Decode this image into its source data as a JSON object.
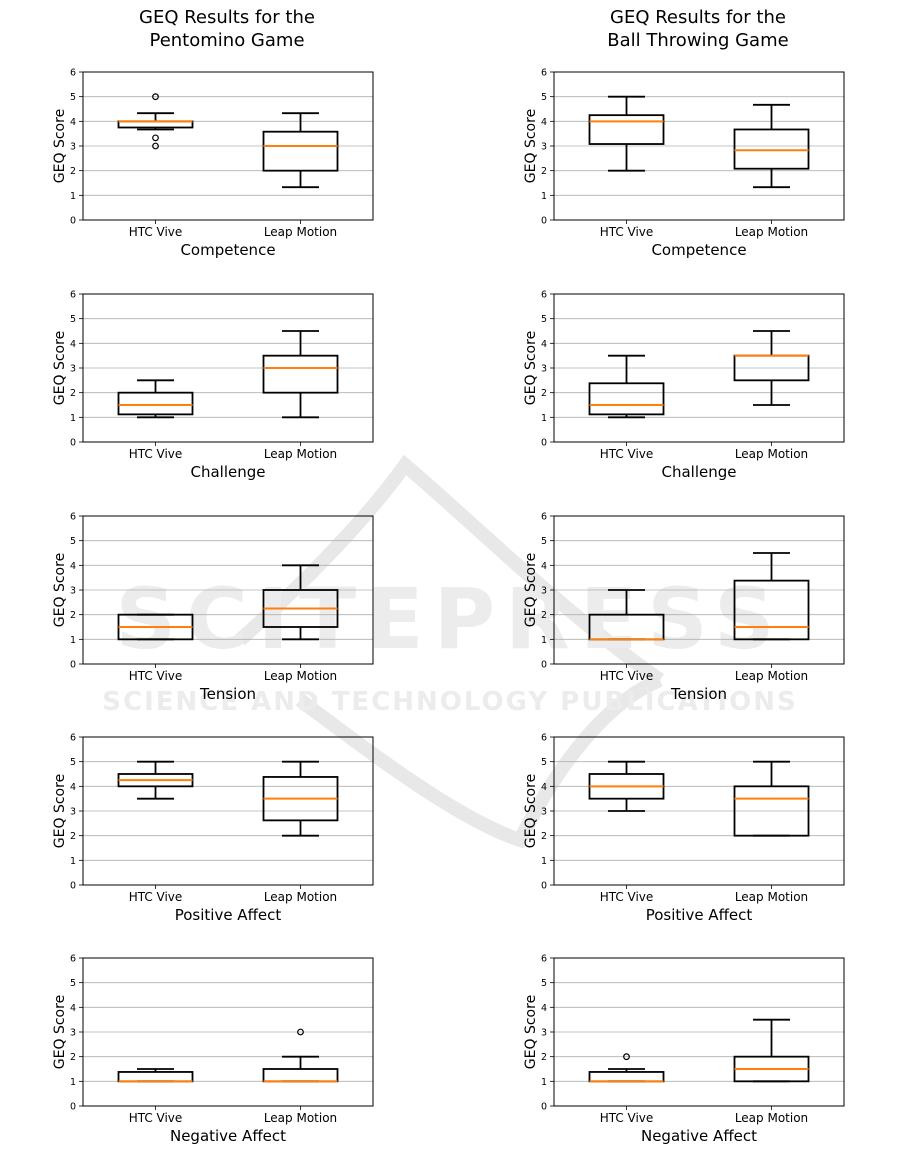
{
  "columns": [
    {
      "title": "GEQ Results for the\nPentomino Game"
    },
    {
      "title": "GEQ Results for the\nBall Throwing Game"
    }
  ],
  "watermark": {
    "line1": "SCITEPRESS",
    "line2": "SCIENCE AND TECHNOLOGY PUBLICATIONS"
  },
  "colors": {
    "median": "#ff7f0e",
    "box": "#000000",
    "grid": "#b0b0b0"
  },
  "chart_data": [
    {
      "type": "boxplot",
      "column": 0,
      "xlabel": "Competence",
      "ylabel": "GEQ Score",
      "ylim": [
        0,
        6
      ],
      "yticks": [
        0,
        1,
        2,
        3,
        4,
        5,
        6
      ],
      "grid": "y",
      "categories": [
        "HTC Vive",
        "Leap Motion"
      ],
      "boxes": [
        {
          "whislo": 3.67,
          "q1": 3.75,
          "med": 4.0,
          "q3": 4.0,
          "whishi": 4.33,
          "fliers": [
            5.0,
            3.33,
            3.0
          ]
        },
        {
          "whislo": 1.33,
          "q1": 2.0,
          "med": 3.0,
          "q3": 3.58,
          "whishi": 4.33,
          "fliers": []
        }
      ]
    },
    {
      "type": "boxplot",
      "column": 1,
      "xlabel": "Competence",
      "ylabel": "GEQ Score",
      "ylim": [
        0,
        6
      ],
      "yticks": [
        0,
        1,
        2,
        3,
        4,
        5,
        6
      ],
      "grid": "y",
      "categories": [
        "HTC Vive",
        "Leap Motion"
      ],
      "boxes": [
        {
          "whislo": 2.0,
          "q1": 3.08,
          "med": 4.0,
          "q3": 4.25,
          "whishi": 5.0,
          "fliers": []
        },
        {
          "whislo": 1.33,
          "q1": 2.08,
          "med": 2.83,
          "q3": 3.67,
          "whishi": 4.67,
          "fliers": []
        }
      ]
    },
    {
      "type": "boxplot",
      "column": 0,
      "xlabel": "Challenge",
      "ylabel": "GEQ Score",
      "ylim": [
        0,
        6
      ],
      "yticks": [
        0,
        1,
        2,
        3,
        4,
        5,
        6
      ],
      "grid": "y",
      "categories": [
        "HTC Vive",
        "Leap Motion"
      ],
      "boxes": [
        {
          "whislo": 1.0,
          "q1": 1.12,
          "med": 1.5,
          "q3": 2.0,
          "whishi": 2.5,
          "fliers": []
        },
        {
          "whislo": 1.0,
          "q1": 2.0,
          "med": 3.0,
          "q3": 3.5,
          "whishi": 4.5,
          "fliers": []
        }
      ]
    },
    {
      "type": "boxplot",
      "column": 1,
      "xlabel": "Challenge",
      "ylabel": "GEQ Score",
      "ylim": [
        0,
        6
      ],
      "yticks": [
        0,
        1,
        2,
        3,
        4,
        5,
        6
      ],
      "grid": "y",
      "categories": [
        "HTC Vive",
        "Leap Motion"
      ],
      "boxes": [
        {
          "whislo": 1.0,
          "q1": 1.12,
          "med": 1.5,
          "q3": 2.38,
          "whishi": 3.5,
          "fliers": []
        },
        {
          "whislo": 1.5,
          "q1": 2.5,
          "med": 3.5,
          "q3": 3.5,
          "whishi": 4.5,
          "fliers": []
        }
      ]
    },
    {
      "type": "boxplot",
      "column": 0,
      "xlabel": "Tension",
      "ylabel": "GEQ Score",
      "ylim": [
        0,
        6
      ],
      "yticks": [
        0,
        1,
        2,
        3,
        4,
        5,
        6
      ],
      "grid": "y",
      "categories": [
        "HTC Vive",
        "Leap Motion"
      ],
      "boxes": [
        {
          "whislo": 1.0,
          "q1": 1.0,
          "med": 1.5,
          "q3": 2.0,
          "whishi": 2.0,
          "fliers": []
        },
        {
          "whislo": 1.0,
          "q1": 1.5,
          "med": 2.25,
          "q3": 3.0,
          "whishi": 4.0,
          "fliers": []
        }
      ]
    },
    {
      "type": "boxplot",
      "column": 1,
      "xlabel": "Tension",
      "ylabel": "GEQ Score",
      "ylim": [
        0,
        6
      ],
      "yticks": [
        0,
        1,
        2,
        3,
        4,
        5,
        6
      ],
      "grid": "y",
      "categories": [
        "HTC Vive",
        "Leap Motion"
      ],
      "boxes": [
        {
          "whislo": 1.0,
          "q1": 1.0,
          "med": 1.0,
          "q3": 2.0,
          "whishi": 3.0,
          "fliers": []
        },
        {
          "whislo": 1.0,
          "q1": 1.0,
          "med": 1.5,
          "q3": 3.38,
          "whishi": 4.5,
          "fliers": []
        }
      ]
    },
    {
      "type": "boxplot",
      "column": 0,
      "xlabel": "Positive Affect",
      "ylabel": "GEQ Score",
      "ylim": [
        0,
        6
      ],
      "yticks": [
        0,
        1,
        2,
        3,
        4,
        5,
        6
      ],
      "grid": "y",
      "categories": [
        "HTC Vive",
        "Leap Motion"
      ],
      "boxes": [
        {
          "whislo": 3.5,
          "q1": 4.0,
          "med": 4.25,
          "q3": 4.5,
          "whishi": 5.0,
          "fliers": []
        },
        {
          "whislo": 2.0,
          "q1": 2.62,
          "med": 3.5,
          "q3": 4.38,
          "whishi": 5.0,
          "fliers": []
        }
      ]
    },
    {
      "type": "boxplot",
      "column": 1,
      "xlabel": "Positive Affect",
      "ylabel": "GEQ Score",
      "ylim": [
        0,
        6
      ],
      "yticks": [
        0,
        1,
        2,
        3,
        4,
        5,
        6
      ],
      "grid": "y",
      "categories": [
        "HTC Vive",
        "Leap Motion"
      ],
      "boxes": [
        {
          "whislo": 3.0,
          "q1": 3.5,
          "med": 4.0,
          "q3": 4.5,
          "whishi": 5.0,
          "fliers": []
        },
        {
          "whislo": 2.0,
          "q1": 2.0,
          "med": 3.5,
          "q3": 4.0,
          "whishi": 5.0,
          "fliers": []
        }
      ]
    },
    {
      "type": "boxplot",
      "column": 0,
      "xlabel": "Negative Affect",
      "ylabel": "GEQ Score",
      "ylim": [
        0,
        6
      ],
      "yticks": [
        0,
        1,
        2,
        3,
        4,
        5,
        6
      ],
      "grid": "y",
      "categories": [
        "HTC Vive",
        "Leap Motion"
      ],
      "boxes": [
        {
          "whislo": 1.0,
          "q1": 1.0,
          "med": 1.0,
          "q3": 1.38,
          "whishi": 1.5,
          "fliers": []
        },
        {
          "whislo": 1.0,
          "q1": 1.0,
          "med": 1.0,
          "q3": 1.5,
          "whishi": 2.0,
          "fliers": [
            3.0
          ]
        }
      ]
    },
    {
      "type": "boxplot",
      "column": 1,
      "xlabel": "Negative Affect",
      "ylabel": "GEQ Score",
      "ylim": [
        0,
        6
      ],
      "yticks": [
        0,
        1,
        2,
        3,
        4,
        5,
        6
      ],
      "grid": "y",
      "categories": [
        "HTC Vive",
        "Leap Motion"
      ],
      "boxes": [
        {
          "whislo": 1.0,
          "q1": 1.0,
          "med": 1.0,
          "q3": 1.38,
          "whishi": 1.5,
          "fliers": [
            2.0
          ]
        },
        {
          "whislo": 1.0,
          "q1": 1.0,
          "med": 1.5,
          "q3": 2.0,
          "whishi": 3.5,
          "fliers": []
        }
      ]
    }
  ]
}
